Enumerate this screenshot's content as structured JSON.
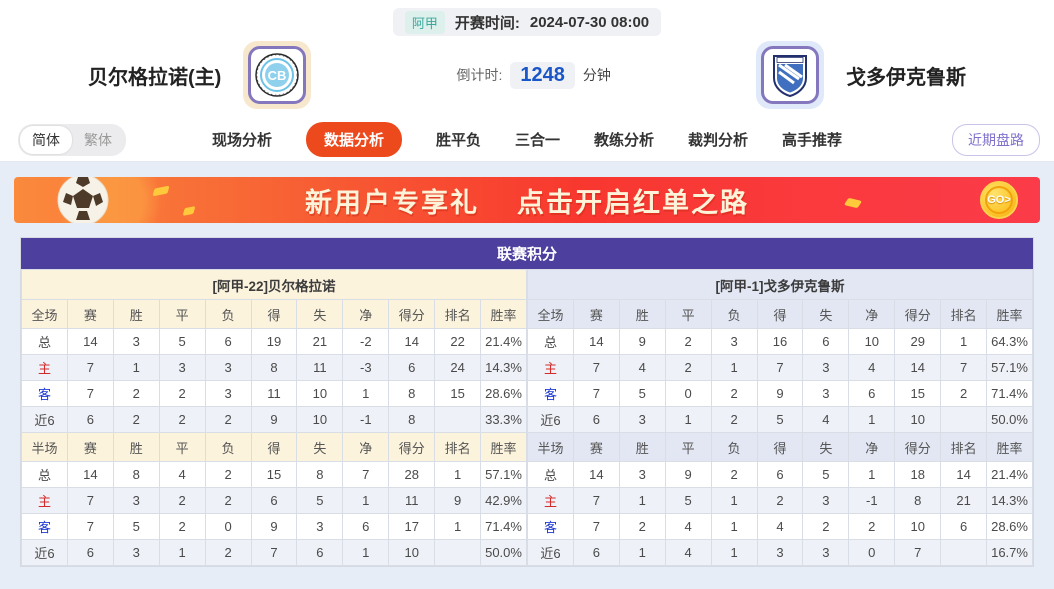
{
  "match": {
    "league": "阿甲",
    "kickoff_label": "开赛时间:",
    "kickoff_time": "2024-07-30 08:00",
    "home": {
      "name": "贝尔格拉诺(主)",
      "logo_monogram": "CB"
    },
    "away": {
      "name": "戈多伊克鲁斯"
    },
    "countdown": {
      "label": "倒计时:",
      "value": "1248",
      "unit": "分钟"
    }
  },
  "nav": {
    "lang": [
      "简体",
      "繁体"
    ],
    "tabs": [
      {
        "label": "现场分析",
        "active": false
      },
      {
        "label": "数据分析",
        "active": true
      },
      {
        "label": "胜平负",
        "active": false
      },
      {
        "label": "三合一",
        "active": false
      },
      {
        "label": "教练分析",
        "active": false
      },
      {
        "label": "裁判分析",
        "active": false
      },
      {
        "label": "高手推荐",
        "active": false
      }
    ],
    "recent_button": "近期盘路"
  },
  "banner": {
    "title": "新用户专享礼",
    "subtitle": "点击开启红单之路",
    "go_label": "GO>"
  },
  "colors": {
    "accent_orange": "#ec4a1c",
    "title_purple": "#4c3f9d",
    "head_cream": "#fcf3dd",
    "head_lavender": "#e2e7f3",
    "countdown_blue": "#1a56c8",
    "league_teal": "#3aa99c",
    "home_label_red": "#d42a2a",
    "away_label_blue": "#1f3bd4"
  },
  "chart_data": {
    "type": "table",
    "title": "联赛积分",
    "columns_full": [
      "全场",
      "赛",
      "胜",
      "平",
      "负",
      "得",
      "失",
      "净",
      "得分",
      "排名",
      "胜率"
    ],
    "columns_half": [
      "半场",
      "赛",
      "胜",
      "平",
      "负",
      "得",
      "失",
      "净",
      "得分",
      "排名",
      "胜率"
    ],
    "home": {
      "header": "[阿甲-22]贝尔格拉诺",
      "full": [
        {
          "label": "总",
          "cells": [
            "14",
            "3",
            "5",
            "6",
            "19",
            "21",
            "-2",
            "14",
            "22",
            "21.4%"
          ]
        },
        {
          "label": "主",
          "cells": [
            "7",
            "1",
            "3",
            "3",
            "8",
            "11",
            "-3",
            "6",
            "24",
            "14.3%"
          ]
        },
        {
          "label": "客",
          "cells": [
            "7",
            "2",
            "2",
            "3",
            "11",
            "10",
            "1",
            "8",
            "15",
            "28.6%"
          ]
        },
        {
          "label": "近6",
          "cells": [
            "6",
            "2",
            "2",
            "2",
            "9",
            "10",
            "-1",
            "8",
            "",
            "33.3%"
          ]
        }
      ],
      "half": [
        {
          "label": "总",
          "cells": [
            "14",
            "8",
            "4",
            "2",
            "15",
            "8",
            "7",
            "28",
            "1",
            "57.1%"
          ]
        },
        {
          "label": "主",
          "cells": [
            "7",
            "3",
            "2",
            "2",
            "6",
            "5",
            "1",
            "11",
            "9",
            "42.9%"
          ]
        },
        {
          "label": "客",
          "cells": [
            "7",
            "5",
            "2",
            "0",
            "9",
            "3",
            "6",
            "17",
            "1",
            "71.4%"
          ]
        },
        {
          "label": "近6",
          "cells": [
            "6",
            "3",
            "1",
            "2",
            "7",
            "6",
            "1",
            "10",
            "",
            "50.0%"
          ]
        }
      ]
    },
    "away": {
      "header": "[阿甲-1]戈多伊克鲁斯",
      "full": [
        {
          "label": "总",
          "cells": [
            "14",
            "9",
            "2",
            "3",
            "16",
            "6",
            "10",
            "29",
            "1",
            "64.3%"
          ]
        },
        {
          "label": "主",
          "cells": [
            "7",
            "4",
            "2",
            "1",
            "7",
            "3",
            "4",
            "14",
            "7",
            "57.1%"
          ]
        },
        {
          "label": "客",
          "cells": [
            "7",
            "5",
            "0",
            "2",
            "9",
            "3",
            "6",
            "15",
            "2",
            "71.4%"
          ]
        },
        {
          "label": "近6",
          "cells": [
            "6",
            "3",
            "1",
            "2",
            "5",
            "4",
            "1",
            "10",
            "",
            "50.0%"
          ]
        }
      ],
      "half": [
        {
          "label": "总",
          "cells": [
            "14",
            "3",
            "9",
            "2",
            "6",
            "5",
            "1",
            "18",
            "14",
            "21.4%"
          ]
        },
        {
          "label": "主",
          "cells": [
            "7",
            "1",
            "5",
            "1",
            "2",
            "3",
            "-1",
            "8",
            "21",
            "14.3%"
          ]
        },
        {
          "label": "客",
          "cells": [
            "7",
            "2",
            "4",
            "1",
            "4",
            "2",
            "2",
            "10",
            "6",
            "28.6%"
          ]
        },
        {
          "label": "近6",
          "cells": [
            "6",
            "1",
            "4",
            "1",
            "3",
            "3",
            "0",
            "7",
            "",
            "16.7%"
          ]
        }
      ]
    }
  }
}
